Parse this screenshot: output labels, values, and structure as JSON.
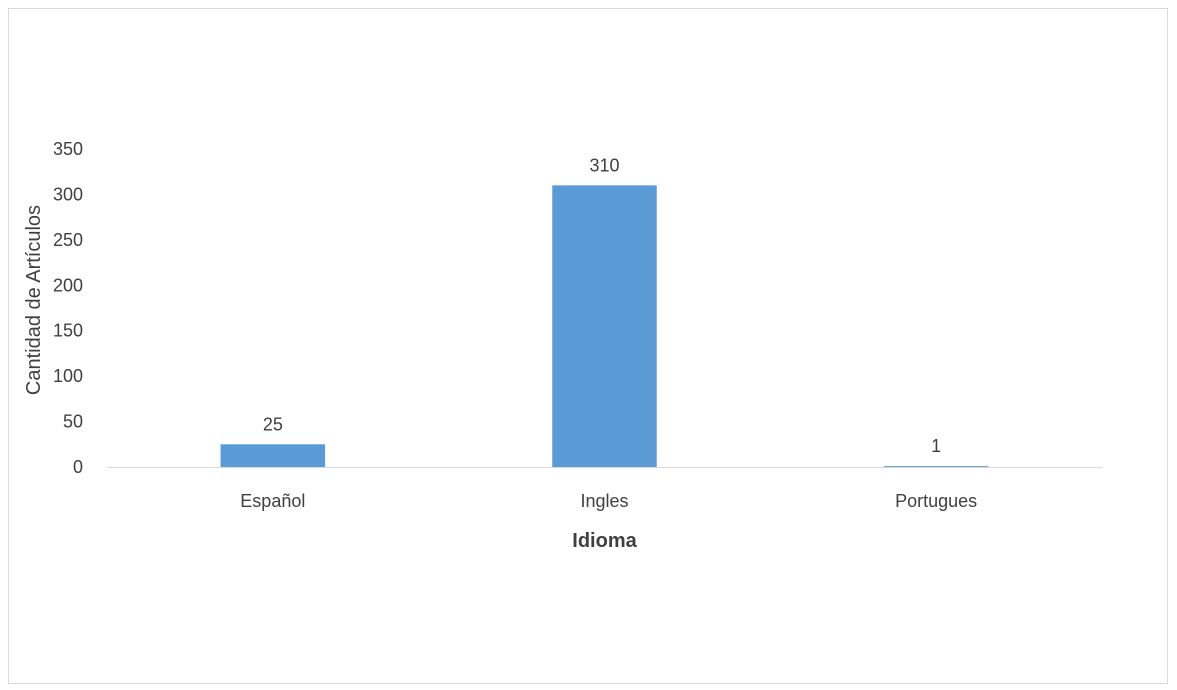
{
  "chart_data": {
    "type": "bar",
    "title": "",
    "categories": [
      "Español",
      "Ingles",
      "Portugues"
    ],
    "values": [
      25,
      310,
      1
    ],
    "data_labels": [
      "25",
      "310",
      "1"
    ],
    "xlabel": "Idioma",
    "ylabel": "Cantidad  de Artículos",
    "ylim": [
      0,
      350
    ],
    "yticks": [
      0,
      50,
      100,
      150,
      200,
      250,
      300,
      350
    ],
    "ytick_labels": [
      "0",
      "50",
      "100",
      "150",
      "200",
      "250",
      "300",
      "350"
    ],
    "grid": false,
    "legend": "none",
    "colors": {
      "bar": "#5b9bd5",
      "axis": "#d9d9d9",
      "text": "#404040"
    }
  }
}
